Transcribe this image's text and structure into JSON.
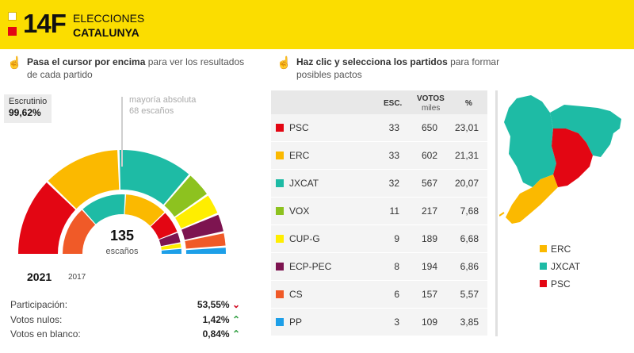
{
  "header": {
    "title": "14F",
    "subtitle_1": "ELECCIONES",
    "subtitle_2": "CATALUNYA"
  },
  "hint_left": {
    "bold": "Pasa el cursor por encima",
    "rest": " para ver los resultados",
    "line2": "de cada partido"
  },
  "hint_right": {
    "bold": "Haz clic y selecciona los partidos",
    "rest": " para formar",
    "line2": "posibles pactos"
  },
  "escrutinio": {
    "label": "Escrutinio",
    "value": "99,62%"
  },
  "majority": {
    "line1": "mayoría absoluta",
    "line2": "68 escaños"
  },
  "seats": {
    "total": "135",
    "label": "escaños"
  },
  "years": {
    "current": "2021",
    "previous": "2017"
  },
  "stats": [
    {
      "label": "Participación:",
      "value": "53,55%",
      "trend": "down",
      "arrow": "⌄"
    },
    {
      "label": "Votos nulos:",
      "value": "1,42%",
      "trend": "up",
      "arrow": "⌃"
    },
    {
      "label": "Votos en blanco:",
      "value": "0,84%",
      "trend": "up",
      "arrow": "⌃"
    }
  ],
  "table": {
    "headers": {
      "esc": "ESC.",
      "votos": "VOTOS",
      "votos_sub": "miles",
      "pct": "%"
    },
    "rows": [
      {
        "party": "PSC",
        "seats": "33",
        "votes": "650",
        "pct": "23,01",
        "color": "#e30613"
      },
      {
        "party": "ERC",
        "seats": "33",
        "votes": "602",
        "pct": "21,31",
        "color": "#fbb900"
      },
      {
        "party": "JXCAT",
        "seats": "32",
        "votes": "567",
        "pct": "20,07",
        "color": "#1ebba5"
      },
      {
        "party": "VOX",
        "seats": "11",
        "votes": "217",
        "pct": "7,68",
        "color": "#8dc21f"
      },
      {
        "party": "CUP-G",
        "seats": "9",
        "votes": "189",
        "pct": "6,68",
        "color": "#ffee00"
      },
      {
        "party": "ECP-PEC",
        "seats": "8",
        "votes": "194",
        "pct": "6,86",
        "color": "#7d1450"
      },
      {
        "party": "CS",
        "seats": "6",
        "votes": "157",
        "pct": "5,57",
        "color": "#f05a28"
      },
      {
        "party": "PP",
        "seats": "3",
        "votes": "109",
        "pct": "3,85",
        "color": "#1d9fe8"
      }
    ]
  },
  "hemicycle_2021": [
    {
      "party": "PSC",
      "seats": 33,
      "color": "#e30613"
    },
    {
      "party": "ERC",
      "seats": 33,
      "color": "#fbb900"
    },
    {
      "party": "JXCAT",
      "seats": 32,
      "color": "#1ebba5"
    },
    {
      "party": "VOX",
      "seats": 11,
      "color": "#8dc21f"
    },
    {
      "party": "CUP-G",
      "seats": 9,
      "color": "#ffee00"
    },
    {
      "party": "ECP-PEC",
      "seats": 8,
      "color": "#7d1450"
    },
    {
      "party": "CS",
      "seats": 6,
      "color": "#f05a28"
    },
    {
      "party": "PP",
      "seats": 3,
      "color": "#1d9fe8"
    }
  ],
  "hemicycle_2017": [
    {
      "party": "CS",
      "seats": 36,
      "color": "#f05a28"
    },
    {
      "party": "JXCAT",
      "seats": 34,
      "color": "#1ebba5"
    },
    {
      "party": "ERC",
      "seats": 32,
      "color": "#fbb900"
    },
    {
      "party": "PSC",
      "seats": 17,
      "color": "#e30613"
    },
    {
      "party": "ECP-PEC",
      "seats": 8,
      "color": "#7d1450"
    },
    {
      "party": "CUP-G",
      "seats": 4,
      "color": "#ffee00"
    },
    {
      "party": "PP",
      "seats": 4,
      "color": "#1d9fe8"
    }
  ],
  "map_legend": [
    {
      "label": "ERC",
      "color": "#fbb900"
    },
    {
      "label": "JXCAT",
      "color": "#1ebba5"
    },
    {
      "label": "PSC",
      "color": "#e30613"
    }
  ],
  "colors": {
    "brand_yellow": "#fbdd00",
    "brand_red": "#e30613",
    "up": "#2e9e3f",
    "down": "#d0021b"
  }
}
